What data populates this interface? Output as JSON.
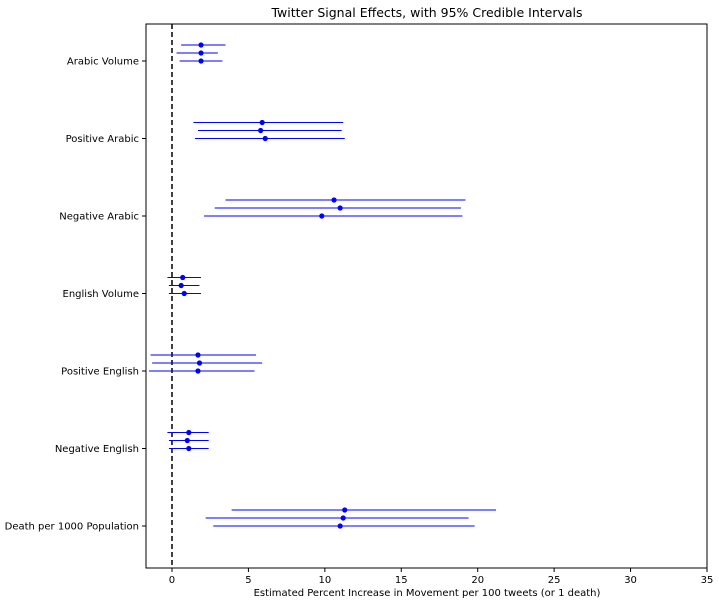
{
  "chart_data": {
    "type": "errorbar",
    "title": "Twitter Signal Effects, with 95% Credible Intervals",
    "xlabel": "Estimated Percent Increase in Movement per 100 tweets (or 1 death)",
    "ylabel": "",
    "xlim": [
      -1.7,
      35
    ],
    "xticks": [
      0,
      5,
      10,
      15,
      20,
      25,
      30,
      35
    ],
    "reference_line": {
      "x": 0,
      "style": "dashed",
      "color": "#000000"
    },
    "grid": false,
    "marker_color": "#0000ff",
    "categories": [
      {
        "label": "Arabic Volume",
        "estimates": [
          {
            "mean": 1.9,
            "low": 0.6,
            "high": 3.5
          },
          {
            "mean": 1.9,
            "low": 0.3,
            "high": 3.0
          },
          {
            "mean": 1.9,
            "low": 0.5,
            "high": 3.3
          }
        ]
      },
      {
        "label": "Positive Arabic",
        "estimates": [
          {
            "mean": 5.9,
            "low": 1.4,
            "high": 11.2
          },
          {
            "mean": 5.8,
            "low": 1.7,
            "high": 11.1
          },
          {
            "mean": 6.1,
            "low": 1.5,
            "high": 11.3
          }
        ]
      },
      {
        "label": "Negative Arabic",
        "estimates": [
          {
            "mean": 10.6,
            "low": 3.5,
            "high": 19.2
          },
          {
            "mean": 11.0,
            "low": 2.8,
            "high": 18.9
          },
          {
            "mean": 9.8,
            "low": 2.1,
            "high": 19.0
          }
        ]
      },
      {
        "label": "English Volume",
        "estimates": [
          {
            "mean": 0.7,
            "low": -0.3,
            "high": 1.9
          },
          {
            "mean": 0.6,
            "low": -0.2,
            "high": 1.8
          },
          {
            "mean": 0.8,
            "low": -0.2,
            "high": 1.9
          }
        ]
      },
      {
        "label": "Positive English",
        "estimates": [
          {
            "mean": 1.7,
            "low": -1.4,
            "high": 5.5
          },
          {
            "mean": 1.8,
            "low": -1.3,
            "high": 5.9
          },
          {
            "mean": 1.7,
            "low": -1.5,
            "high": 5.4
          }
        ]
      },
      {
        "label": "Negative English",
        "estimates": [
          {
            "mean": 1.1,
            "low": -0.3,
            "high": 2.4
          },
          {
            "mean": 1.0,
            "low": -0.2,
            "high": 2.4
          },
          {
            "mean": 1.1,
            "low": -0.2,
            "high": 2.4
          }
        ]
      },
      {
        "label": "Death per 1000 Population",
        "estimates": [
          {
            "mean": 11.3,
            "low": 3.9,
            "high": 21.2
          },
          {
            "mean": 11.2,
            "low": 2.2,
            "high": 19.4
          },
          {
            "mean": 11.0,
            "low": 2.7,
            "high": 19.8
          }
        ]
      }
    ]
  }
}
